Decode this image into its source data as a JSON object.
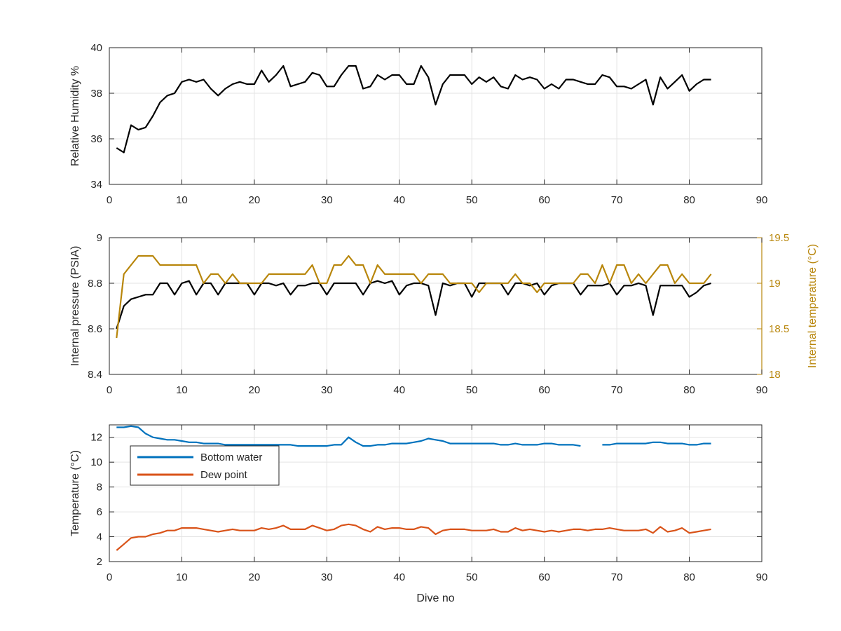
{
  "colors": {
    "axis": "#262626",
    "grid": "#e3e3e3",
    "black_series": "#000000",
    "temperature_axis": "#b8860b",
    "bottom_water": "#0072bd",
    "dew_point": "#d95319"
  },
  "chart_data": [
    {
      "type": "line",
      "xlabel": "",
      "ylabel": "Relative Humidity %",
      "xlim": [
        0,
        90
      ],
      "ylim": [
        34,
        40
      ],
      "xticks": [
        "0",
        "10",
        "20",
        "30",
        "40",
        "50",
        "60",
        "70",
        "80",
        "90"
      ],
      "yticks": [
        "34",
        "36",
        "38",
        "40"
      ],
      "grid": true,
      "series": [
        {
          "color": "#000000",
          "x": [
            1,
            2,
            3,
            4,
            5,
            6,
            7,
            8,
            9,
            10,
            11,
            12,
            13,
            14,
            15,
            16,
            17,
            18,
            19,
            20,
            21,
            22,
            23,
            24,
            25,
            26,
            27,
            28,
            29,
            30,
            31,
            32,
            33,
            34,
            35,
            36,
            37,
            38,
            39,
            40,
            41,
            42,
            43,
            44,
            45,
            46,
            47,
            48,
            49,
            50,
            51,
            52,
            53,
            54,
            55,
            56,
            57,
            58,
            59,
            60,
            61,
            62,
            63,
            64,
            65,
            66,
            67,
            68,
            69,
            70,
            71,
            72,
            73,
            74,
            75,
            76,
            77,
            78,
            79,
            80,
            81,
            82,
            83
          ],
          "values": [
            35.6,
            35.4,
            36.6,
            36.4,
            36.5,
            37.0,
            37.6,
            37.9,
            38.0,
            38.5,
            38.6,
            38.5,
            38.6,
            38.2,
            37.9,
            38.2,
            38.4,
            38.5,
            38.4,
            38.4,
            39.0,
            38.5,
            38.8,
            39.2,
            38.3,
            38.4,
            38.5,
            38.9,
            38.8,
            38.3,
            38.3,
            38.8,
            39.2,
            39.2,
            38.2,
            38.3,
            38.8,
            38.6,
            38.8,
            38.8,
            38.4,
            38.4,
            39.2,
            38.7,
            37.5,
            38.4,
            38.8,
            38.8,
            38.8,
            38.4,
            38.7,
            38.5,
            38.7,
            38.3,
            38.2,
            38.8,
            38.6,
            38.7,
            38.6,
            38.2,
            38.4,
            38.2,
            38.6,
            38.6,
            38.5,
            38.4,
            38.4,
            38.8,
            38.7,
            38.3,
            38.3,
            38.2,
            38.4,
            38.6,
            37.5,
            38.7,
            38.2,
            38.5,
            38.8,
            38.1,
            38.4,
            38.6,
            38.6
          ]
        }
      ]
    },
    {
      "type": "line",
      "xlabel": "",
      "ylabel": "Internal pressure (PSIA)",
      "y2label": "Internal temperature (°C)",
      "xlim": [
        0,
        90
      ],
      "ylim": [
        8.4,
        9
      ],
      "y2lim": [
        18,
        19.5
      ],
      "xticks": [
        "0",
        "10",
        "20",
        "30",
        "40",
        "50",
        "60",
        "70",
        "80",
        "90"
      ],
      "yticks": [
        "8.4",
        "8.6",
        "8.8",
        "9"
      ],
      "y2ticks": [
        "18",
        "18.5",
        "19",
        "19.5"
      ],
      "grid": true,
      "series": [
        {
          "axis": "left",
          "color": "#000000",
          "x": [
            1,
            2,
            3,
            4,
            5,
            6,
            7,
            8,
            9,
            10,
            11,
            12,
            13,
            14,
            15,
            16,
            17,
            18,
            19,
            20,
            21,
            22,
            23,
            24,
            25,
            26,
            27,
            28,
            29,
            30,
            31,
            32,
            33,
            34,
            35,
            36,
            37,
            38,
            39,
            40,
            41,
            42,
            43,
            44,
            45,
            46,
            47,
            48,
            49,
            50,
            51,
            52,
            53,
            54,
            55,
            56,
            57,
            58,
            59,
            60,
            61,
            62,
            63,
            64,
            65,
            66,
            67,
            68,
            69,
            70,
            71,
            72,
            73,
            74,
            75,
            76,
            77,
            78,
            79,
            80,
            81,
            82,
            83
          ],
          "values": [
            8.6,
            8.7,
            8.73,
            8.74,
            8.75,
            8.75,
            8.8,
            8.8,
            8.75,
            8.8,
            8.81,
            8.75,
            8.8,
            8.8,
            8.75,
            8.8,
            8.8,
            8.8,
            8.8,
            8.75,
            8.8,
            8.8,
            8.79,
            8.8,
            8.75,
            8.79,
            8.79,
            8.8,
            8.8,
            8.75,
            8.8,
            8.8,
            8.8,
            8.8,
            8.75,
            8.8,
            8.81,
            8.8,
            8.81,
            8.75,
            8.79,
            8.8,
            8.8,
            8.79,
            8.66,
            8.8,
            8.79,
            8.8,
            8.8,
            8.74,
            8.8,
            8.8,
            8.8,
            8.8,
            8.75,
            8.8,
            8.8,
            8.79,
            8.8,
            8.75,
            8.79,
            8.8,
            8.8,
            8.8,
            8.75,
            8.79,
            8.79,
            8.79,
            8.8,
            8.75,
            8.79,
            8.79,
            8.8,
            8.79,
            8.66,
            8.79,
            8.79,
            8.79,
            8.79,
            8.74,
            8.76,
            8.79,
            8.8
          ]
        },
        {
          "axis": "right",
          "color": "#b8860b",
          "x": [
            1,
            2,
            3,
            4,
            5,
            6,
            7,
            8,
            9,
            10,
            11,
            12,
            13,
            14,
            15,
            16,
            17,
            18,
            19,
            20,
            21,
            22,
            23,
            24,
            25,
            26,
            27,
            28,
            29,
            30,
            31,
            32,
            33,
            34,
            35,
            36,
            37,
            38,
            39,
            40,
            41,
            42,
            43,
            44,
            45,
            46,
            47,
            48,
            49,
            50,
            51,
            52,
            53,
            54,
            55,
            56,
            57,
            58,
            59,
            60,
            61,
            62,
            63,
            64,
            65,
            66,
            67,
            68,
            69,
            70,
            71,
            72,
            73,
            74,
            75,
            76,
            77,
            78,
            79,
            80,
            81,
            82,
            83
          ],
          "values": [
            18.4,
            19.1,
            19.2,
            19.3,
            19.3,
            19.3,
            19.2,
            19.2,
            19.2,
            19.2,
            19.2,
            19.2,
            19.0,
            19.1,
            19.1,
            19.0,
            19.1,
            19.0,
            19.0,
            19.0,
            19.0,
            19.1,
            19.1,
            19.1,
            19.1,
            19.1,
            19.1,
            19.2,
            19.0,
            19.0,
            19.2,
            19.2,
            19.3,
            19.2,
            19.2,
            19.0,
            19.2,
            19.1,
            19.1,
            19.1,
            19.1,
            19.1,
            19.0,
            19.1,
            19.1,
            19.1,
            19.0,
            19.0,
            19.0,
            19.0,
            18.9,
            19.0,
            19.0,
            19.0,
            19.0,
            19.1,
            19.0,
            19.0,
            18.9,
            19.0,
            19.0,
            19.0,
            19.0,
            19.0,
            19.1,
            19.1,
            19.0,
            19.2,
            19.0,
            19.2,
            19.2,
            19.0,
            19.1,
            19.0,
            19.1,
            19.2,
            19.2,
            19.0,
            19.1,
            19.0,
            19.0,
            19.0,
            19.1
          ]
        }
      ]
    },
    {
      "type": "line",
      "xlabel": "Dive no",
      "ylabel": "Temperature (°C)",
      "xlim": [
        0,
        90
      ],
      "ylim": [
        2,
        13
      ],
      "xticks": [
        "0",
        "10",
        "20",
        "30",
        "40",
        "50",
        "60",
        "70",
        "80",
        "90"
      ],
      "yticks": [
        "2",
        "4",
        "6",
        "8",
        "10",
        "12"
      ],
      "grid": true,
      "legend": "top-left",
      "series": [
        {
          "name": "Bottom water",
          "color": "#0072bd",
          "x": [
            1,
            2,
            3,
            4,
            5,
            6,
            7,
            8,
            9,
            10,
            11,
            12,
            13,
            14,
            15,
            16,
            17,
            18,
            19,
            20,
            21,
            22,
            23,
            24,
            25,
            26,
            27,
            28,
            29,
            30,
            31,
            32,
            33,
            34,
            35,
            36,
            37,
            38,
            39,
            40,
            41,
            42,
            43,
            44,
            45,
            46,
            47,
            48,
            49,
            50,
            51,
            52,
            53,
            54,
            55,
            56,
            57,
            58,
            59,
            60,
            61,
            62,
            63,
            64,
            65,
            66,
            67,
            68,
            69,
            70,
            71,
            72,
            73,
            74,
            75,
            76,
            77,
            78,
            79,
            80,
            81,
            82,
            83
          ],
          "values": [
            12.8,
            12.8,
            12.9,
            12.8,
            12.3,
            12.0,
            11.9,
            11.8,
            11.8,
            11.7,
            11.6,
            11.6,
            11.5,
            11.5,
            11.5,
            11.4,
            11.4,
            11.4,
            11.4,
            11.4,
            11.4,
            11.4,
            11.4,
            11.4,
            11.4,
            11.3,
            11.3,
            11.3,
            11.3,
            11.3,
            11.4,
            11.4,
            12.0,
            11.6,
            11.3,
            11.3,
            11.4,
            11.4,
            11.5,
            11.5,
            11.5,
            11.6,
            11.7,
            11.9,
            11.8,
            11.7,
            11.5,
            11.5,
            11.5,
            11.5,
            11.5,
            11.5,
            11.5,
            11.4,
            11.4,
            11.5,
            11.4,
            11.4,
            11.4,
            11.5,
            11.5,
            11.4,
            11.4,
            11.4,
            11.3,
            null,
            null,
            11.4,
            11.4,
            11.5,
            11.5,
            11.5,
            11.5,
            11.5,
            11.6,
            11.6,
            11.5,
            11.5,
            11.5,
            11.4,
            11.4,
            11.5,
            11.5
          ]
        },
        {
          "name": "Dew point",
          "color": "#d95319",
          "x": [
            1,
            2,
            3,
            4,
            5,
            6,
            7,
            8,
            9,
            10,
            11,
            12,
            13,
            14,
            15,
            16,
            17,
            18,
            19,
            20,
            21,
            22,
            23,
            24,
            25,
            26,
            27,
            28,
            29,
            30,
            31,
            32,
            33,
            34,
            35,
            36,
            37,
            38,
            39,
            40,
            41,
            42,
            43,
            44,
            45,
            46,
            47,
            48,
            49,
            50,
            51,
            52,
            53,
            54,
            55,
            56,
            57,
            58,
            59,
            60,
            61,
            62,
            63,
            64,
            65,
            66,
            67,
            68,
            69,
            70,
            71,
            72,
            73,
            74,
            75,
            76,
            77,
            78,
            79,
            80,
            81,
            82,
            83
          ],
          "values": [
            2.9,
            3.4,
            3.9,
            4.0,
            4.0,
            4.2,
            4.3,
            4.5,
            4.5,
            4.7,
            4.7,
            4.7,
            4.6,
            4.5,
            4.4,
            4.5,
            4.6,
            4.5,
            4.5,
            4.5,
            4.7,
            4.6,
            4.7,
            4.9,
            4.6,
            4.6,
            4.6,
            4.9,
            4.7,
            4.5,
            4.6,
            4.9,
            5.0,
            4.9,
            4.6,
            4.4,
            4.8,
            4.6,
            4.7,
            4.7,
            4.6,
            4.6,
            4.8,
            4.7,
            4.2,
            4.5,
            4.6,
            4.6,
            4.6,
            4.5,
            4.5,
            4.5,
            4.6,
            4.4,
            4.4,
            4.7,
            4.5,
            4.6,
            4.5,
            4.4,
            4.5,
            4.4,
            4.5,
            4.6,
            4.6,
            4.5,
            4.6,
            4.6,
            4.7,
            4.6,
            4.5,
            4.5,
            4.5,
            4.6,
            4.3,
            4.8,
            4.4,
            4.5,
            4.7,
            4.3,
            4.4,
            4.5,
            4.6
          ]
        }
      ]
    }
  ]
}
